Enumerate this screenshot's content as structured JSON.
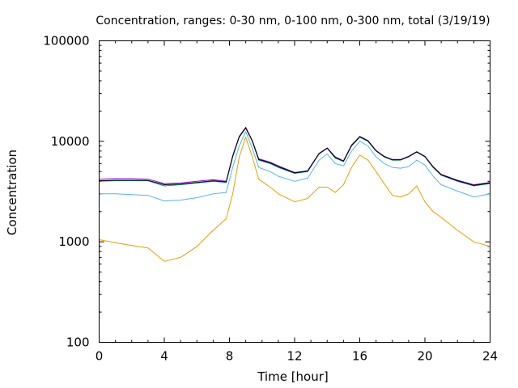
{
  "chart_data": {
    "type": "line",
    "title": "Concentration, ranges: 0-30 nm, 0-100 nm, 0-300 nm, total (3/19/19)",
    "xlabel": "Time [hour]",
    "ylabel": "Concentration",
    "xlim": [
      0,
      24
    ],
    "ylim": [
      100,
      100000
    ],
    "yscale": "log",
    "grid": false,
    "legend": "none",
    "x_ticks": [
      "0",
      "4",
      "8",
      "12",
      "16",
      "20",
      "24"
    ],
    "x_tick_values": [
      0,
      4,
      8,
      12,
      16,
      20,
      24
    ],
    "y_ticks": [
      "100",
      "1000",
      "10000",
      "100000"
    ],
    "y_tick_values": [
      100,
      1000,
      10000,
      100000
    ],
    "x": [
      0,
      1,
      2,
      3,
      4,
      5,
      6,
      7,
      7.8,
      8.2,
      8.6,
      9,
      9.4,
      9.8,
      10.5,
      11,
      12,
      12.8,
      13.5,
      14,
      14.5,
      15,
      15.5,
      16,
      16.5,
      17,
      17.5,
      18,
      18.5,
      19,
      19.5,
      20,
      20.5,
      21,
      22,
      23,
      24
    ],
    "series": [
      {
        "color": "#e69f00",
        "values": [
          1050,
          980,
          920,
          870,
          640,
          700,
          900,
          1300,
          1700,
          3000,
          7000,
          11000,
          7000,
          4200,
          3500,
          3000,
          2500,
          2700,
          3500,
          3500,
          3100,
          3700,
          5500,
          7300,
          6500,
          5000,
          3800,
          2900,
          2800,
          3000,
          3600,
          2500,
          2000,
          1750,
          1300,
          1000,
          900
        ]
      },
      {
        "color": "#56b4e9",
        "values": [
          3000,
          3000,
          2950,
          2900,
          2550,
          2600,
          2750,
          3000,
          3100,
          5500,
          9000,
          12500,
          8500,
          5500,
          5000,
          4500,
          4000,
          4300,
          6500,
          7500,
          6000,
          5700,
          8000,
          10000,
          9000,
          7000,
          6000,
          5500,
          5400,
          5600,
          6500,
          5800,
          4500,
          3700,
          3200,
          2800,
          3000
        ]
      },
      {
        "color": "#009e73",
        "values": [
          4000,
          4050,
          4050,
          4050,
          3600,
          3700,
          3850,
          4000,
          3900,
          7000,
          11000,
          13500,
          10000,
          6500,
          6000,
          5500,
          4800,
          5000,
          7500,
          8500,
          6800,
          6300,
          9000,
          11000,
          10000,
          8000,
          7000,
          6500,
          6500,
          7000,
          7800,
          7000,
          5500,
          4600,
          4000,
          3600,
          3800
        ]
      },
      {
        "color": "#9400d3",
        "values": [
          4200,
          4250,
          4250,
          4200,
          3800,
          3850,
          4000,
          4150,
          4000,
          7200,
          11200,
          13800,
          10200,
          6700,
          6200,
          5700,
          4900,
          5100,
          7600,
          8600,
          7000,
          6400,
          9200,
          11200,
          10200,
          8100,
          7100,
          6600,
          6600,
          7100,
          7900,
          7100,
          5600,
          4700,
          4100,
          3700,
          3900
        ]
      },
      {
        "color": "#000000",
        "values": [
          4050,
          4100,
          4100,
          4080,
          3700,
          3750,
          3900,
          4050,
          3950,
          7100,
          11100,
          13600,
          10100,
          6600,
          6100,
          5600,
          4850,
          5050,
          7550,
          8550,
          6900,
          6350,
          9100,
          11100,
          10100,
          8050,
          7050,
          6550,
          6550,
          7050,
          7850,
          7050,
          5550,
          4650,
          4050,
          3650,
          3850
        ]
      }
    ]
  }
}
